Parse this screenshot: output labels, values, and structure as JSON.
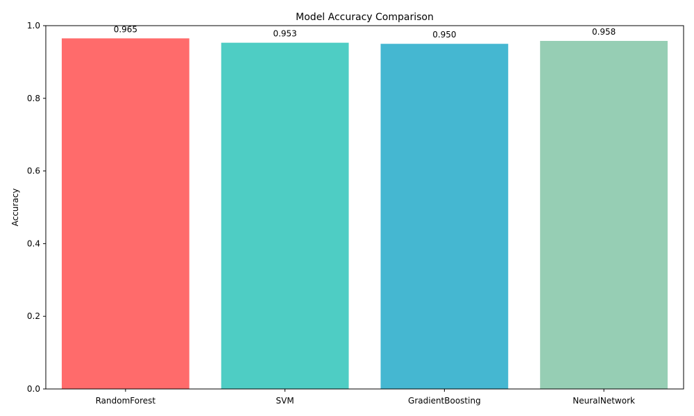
{
  "chart_data": {
    "type": "bar",
    "title": "Model Accuracy Comparison",
    "xlabel": "",
    "ylabel": "Accuracy",
    "categories": [
      "RandomForest",
      "SVM",
      "GradientBoosting",
      "NeuralNetwork"
    ],
    "values": [
      0.965,
      0.953,
      0.95,
      0.958
    ],
    "value_labels": [
      "0.965",
      "0.953",
      "0.950",
      "0.958"
    ],
    "colors": [
      "#FF6B6B",
      "#4ECDC4",
      "#45B7D1",
      "#96CEB4"
    ],
    "ylim": [
      0,
      1
    ],
    "yticks": [
      0.0,
      0.2,
      0.4,
      0.6,
      0.8,
      1.0
    ],
    "ytick_labels": [
      "0.0",
      "0.2",
      "0.4",
      "0.6",
      "0.8",
      "1.0"
    ],
    "grid": false,
    "legend": "none"
  }
}
